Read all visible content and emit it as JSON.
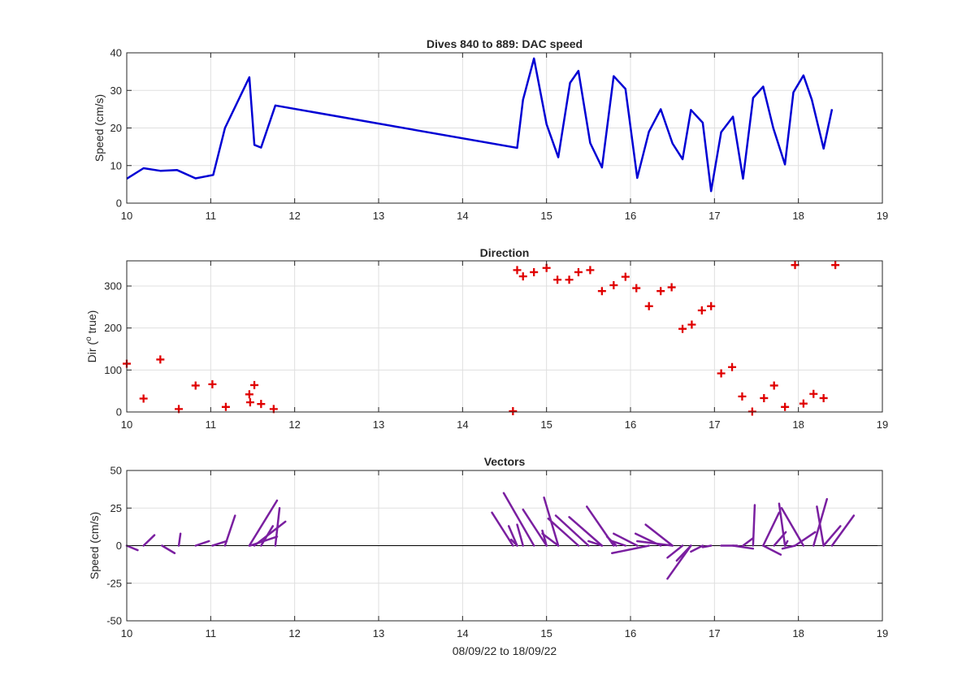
{
  "figure": {
    "colors": {
      "speed": "#0000d4",
      "direction": "#e00000",
      "vectors": "#7a1fa0",
      "axis": "#262626",
      "grid": "#dfdfdf"
    }
  },
  "chart_data": [
    {
      "type": "line",
      "title": "Dives 840 to 889: DAC speed",
      "xlabel": "",
      "ylabel": "Speed (cm/s)",
      "xlim": [
        10,
        19
      ],
      "ylim": [
        0,
        40
      ],
      "xticks": [
        10,
        11,
        12,
        13,
        14,
        15,
        16,
        17,
        18,
        19
      ],
      "yticks": [
        0,
        10,
        20,
        30,
        40
      ],
      "grid": true,
      "series": [
        {
          "x": [
            10.0,
            10.2,
            10.4,
            10.6,
            10.82,
            11.03,
            11.17,
            11.46,
            11.52,
            11.6,
            11.77,
            14.65,
            14.72,
            14.85,
            15.0,
            15.14,
            15.28,
            15.38,
            15.52,
            15.66,
            15.8,
            15.94,
            16.08,
            16.22,
            16.36,
            16.5,
            16.62,
            16.72,
            16.86,
            16.96,
            17.08,
            17.22,
            17.34,
            17.46,
            17.58,
            17.7,
            17.84,
            17.94,
            18.06,
            18.16,
            18.3,
            18.4
          ],
          "y": [
            6.5,
            9.3,
            8.6,
            8.8,
            6.6,
            7.5,
            20.0,
            33.5,
            15.5,
            14.8,
            26.0,
            14.7,
            27.5,
            38.5,
            21.0,
            12.2,
            32.0,
            35.2,
            16.0,
            9.5,
            33.8,
            30.4,
            6.7,
            19.0,
            25.0,
            15.9,
            11.7,
            24.8,
            21.4,
            3.2,
            18.9,
            23.0,
            6.5,
            28.0,
            31.0,
            20.0,
            10.3,
            29.5,
            34.0,
            27.5,
            14.5,
            25.0
          ]
        }
      ]
    },
    {
      "type": "scatter",
      "title": "Direction",
      "xlabel": "",
      "ylabel": "Dir (",
      "ylabel_sup": "o",
      "ylabel_tail": " true)",
      "xlim": [
        10,
        19
      ],
      "ylim": [
        0,
        360
      ],
      "xticks": [
        10,
        11,
        12,
        13,
        14,
        15,
        16,
        17,
        18,
        19
      ],
      "yticks": [
        0,
        100,
        200,
        300
      ],
      "grid": true,
      "marker": "+",
      "series": [
        {
          "x": [
            10.0,
            10.2,
            10.4,
            10.62,
            10.82,
            11.02,
            11.18,
            11.46,
            11.47,
            11.52,
            11.6,
            11.75,
            14.6,
            14.65,
            14.72,
            14.85,
            15.0,
            15.13,
            15.27,
            15.38,
            15.52,
            15.66,
            15.8,
            15.94,
            16.07,
            16.22,
            16.36,
            16.49,
            16.62,
            16.73,
            16.85,
            16.96,
            17.08,
            17.21,
            17.33,
            17.45,
            17.59,
            17.71,
            17.84,
            17.96,
            18.06,
            18.18,
            18.3,
            18.44
          ],
          "y": [
            115,
            32,
            125,
            7,
            63,
            66,
            12,
            42,
            23,
            64,
            19,
            7,
            2,
            338,
            323,
            333,
            343,
            315,
            315,
            333,
            338,
            288,
            302,
            322,
            295,
            252,
            288,
            297,
            198,
            208,
            242,
            252,
            92,
            107,
            37,
            1,
            33,
            63,
            12,
            350,
            20,
            43,
            33,
            350
          ]
        }
      ]
    },
    {
      "type": "line",
      "title": "Vectors",
      "xlabel": "08/09/22 to 18/09/22",
      "ylabel": "Speed (cm/s)",
      "xlim": [
        10,
        19
      ],
      "ylim": [
        -50,
        50
      ],
      "xticks": [
        10,
        11,
        12,
        13,
        14,
        15,
        16,
        17,
        18,
        19
      ],
      "yticks": [
        -50,
        -25,
        0,
        25,
        50
      ],
      "grid": true,
      "vectors": [
        {
          "x0": 10.0,
          "x1": 10.13,
          "y1": -3
        },
        {
          "x0": 10.2,
          "x1": 10.33,
          "y1": 7
        },
        {
          "x0": 10.42,
          "x1": 10.57,
          "y1": -5
        },
        {
          "x0": 10.62,
          "x1": 10.64,
          "y1": 8
        },
        {
          "x0": 10.82,
          "x1": 10.98,
          "y1": 3
        },
        {
          "x0": 11.02,
          "x1": 11.19,
          "y1": 3
        },
        {
          "x0": 11.17,
          "x1": 11.29,
          "y1": 20
        },
        {
          "x0": 11.46,
          "x1": 11.79,
          "y1": 30
        },
        {
          "x0": 11.47,
          "x1": 11.79,
          "y1": 6
        },
        {
          "x0": 11.52,
          "x1": 11.89,
          "y1": 16
        },
        {
          "x0": 11.6,
          "x1": 11.74,
          "y1": 13
        },
        {
          "x0": 11.77,
          "x1": 11.82,
          "y1": 25
        },
        {
          "x0": 14.6,
          "x1": 14.35,
          "y1": 22
        },
        {
          "x0": 14.65,
          "x1": 14.55,
          "y1": 13
        },
        {
          "x0": 14.65,
          "x1": 14.58,
          "y1": 4
        },
        {
          "x0": 14.72,
          "x1": 14.65,
          "y1": 14
        },
        {
          "x0": 14.85,
          "x1": 14.49,
          "y1": 35
        },
        {
          "x0": 15.0,
          "x1": 14.72,
          "y1": 24
        },
        {
          "x0": 15.0,
          "x1": 14.95,
          "y1": 10
        },
        {
          "x0": 15.14,
          "x1": 14.97,
          "y1": 32
        },
        {
          "x0": 15.14,
          "x1": 14.95,
          "y1": 8
        },
        {
          "x0": 15.38,
          "x1": 15.02,
          "y1": 18
        },
        {
          "x0": 15.5,
          "x1": 15.11,
          "y1": 20
        },
        {
          "x0": 15.66,
          "x1": 15.27,
          "y1": 19
        },
        {
          "x0": 15.66,
          "x1": 15.5,
          "y1": 3
        },
        {
          "x0": 15.8,
          "x1": 15.48,
          "y1": 26
        },
        {
          "x0": 15.83,
          "x1": 15.72,
          "y1": 6
        },
        {
          "x0": 15.94,
          "x1": 15.78,
          "y1": 3
        },
        {
          "x0": 16.08,
          "x1": 15.8,
          "y1": 8
        },
        {
          "x0": 16.22,
          "x1": 15.78,
          "y1": -5
        },
        {
          "x0": 16.36,
          "x1": 16.06,
          "y1": 8
        },
        {
          "x0": 16.5,
          "x1": 16.18,
          "y1": 14
        },
        {
          "x0": 16.5,
          "x1": 16.08,
          "y1": 3
        },
        {
          "x0": 16.62,
          "x1": 16.44,
          "y1": -8
        },
        {
          "x0": 16.72,
          "x1": 16.55,
          "y1": -10
        },
        {
          "x0": 16.72,
          "x1": 16.44,
          "y1": -22
        },
        {
          "x0": 16.86,
          "x1": 16.72,
          "y1": -4
        },
        {
          "x0": 16.96,
          "x1": 16.86,
          "y1": -1
        },
        {
          "x0": 17.08,
          "x1": 17.27,
          "y1": 0
        },
        {
          "x0": 17.22,
          "x1": 17.46,
          "y1": -2
        },
        {
          "x0": 17.34,
          "x1": 17.46,
          "y1": 5
        },
        {
          "x0": 17.46,
          "x1": 17.48,
          "y1": 27
        },
        {
          "x0": 17.58,
          "x1": 17.79,
          "y1": -6
        },
        {
          "x0": 17.58,
          "x1": 17.77,
          "y1": 22
        },
        {
          "x0": 17.71,
          "x1": 17.85,
          "y1": 9
        },
        {
          "x0": 17.84,
          "x1": 17.87,
          "y1": 3
        },
        {
          "x0": 17.84,
          "x1": 17.77,
          "y1": 28
        },
        {
          "x0": 17.96,
          "x1": 17.81,
          "y1": -2
        },
        {
          "x0": 17.96,
          "x1": 18.2,
          "y1": 9
        },
        {
          "x0": 18.06,
          "x1": 17.8,
          "y1": 25
        },
        {
          "x0": 18.18,
          "x1": 18.34,
          "y1": 31
        },
        {
          "x0": 18.3,
          "x1": 18.5,
          "y1": 13
        },
        {
          "x0": 18.3,
          "x1": 18.22,
          "y1": 26
        },
        {
          "x0": 18.4,
          "x1": 18.66,
          "y1": 20
        }
      ]
    }
  ]
}
